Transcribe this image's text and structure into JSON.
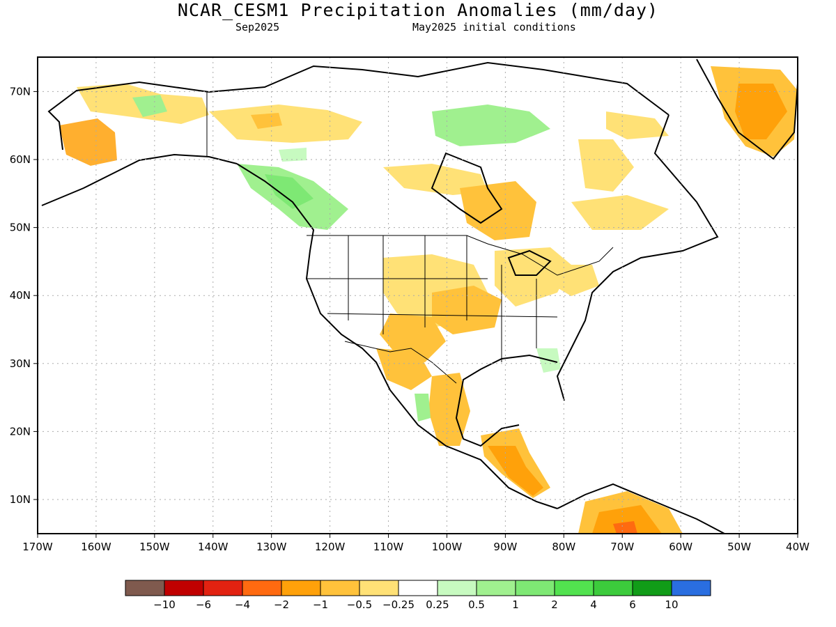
{
  "title": "NCAR_CESM1 Precipitation Anomalies (mm/day)",
  "subtitle_left": "Sep2025",
  "subtitle_right": "May2025 initial conditions",
  "axes": {
    "lat_ticks": [
      "10N",
      "20N",
      "30N",
      "40N",
      "50N",
      "60N",
      "70N"
    ],
    "lon_ticks": [
      "170W",
      "160W",
      "150W",
      "140W",
      "130W",
      "120W",
      "110W",
      "100W",
      "90W",
      "80W",
      "70W",
      "60W",
      "50W",
      "40W"
    ]
  },
  "colorbar": {
    "colors": [
      "#7f5a4e",
      "#c00000",
      "#e22211",
      "#ff6a10",
      "#ffa10a",
      "#ffc23b",
      "#ffe176",
      "#ffffff",
      "#c7fac0",
      "#a0f08f",
      "#7ee874",
      "#52e24f",
      "#3ccb3c",
      "#119c18",
      "#2a6ee0"
    ],
    "labels": [
      "−10",
      "−6",
      "−4",
      "−2",
      "−1",
      "−0.5",
      "−0.25",
      "0.25",
      "0.5",
      "1",
      "2",
      "4",
      "6",
      "10"
    ]
  }
}
